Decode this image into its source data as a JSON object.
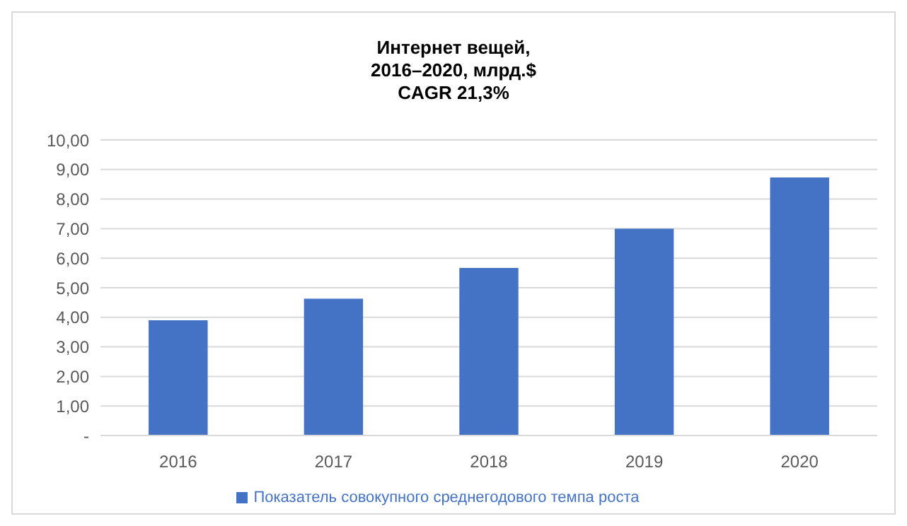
{
  "chart_data": {
    "type": "bar",
    "title": "Интернет вещей,\n2016–2020, млрд.$\nCAGR 21,3%",
    "categories": [
      "2016",
      "2017",
      "2018",
      "2019",
      "2020"
    ],
    "series": [
      {
        "name": "Показатель совокупного среднегодового темпа роста",
        "color": "#4472c4",
        "values": [
          3.9,
          4.63,
          5.67,
          7.0,
          8.73
        ]
      }
    ],
    "ylim": [
      0,
      10
    ],
    "yticks": [
      {
        "value": 0,
        "label": "-"
      },
      {
        "value": 1,
        "label": "1,00"
      },
      {
        "value": 2,
        "label": "2,00"
      },
      {
        "value": 3,
        "label": "3,00"
      },
      {
        "value": 4,
        "label": "4,00"
      },
      {
        "value": 5,
        "label": "5,00"
      },
      {
        "value": 6,
        "label": "6,00"
      },
      {
        "value": 7,
        "label": "7,00"
      },
      {
        "value": 8,
        "label": "8,00"
      },
      {
        "value": 9,
        "label": "9,00"
      },
      {
        "value": 10,
        "label": "10,00"
      }
    ],
    "grid": "y",
    "legend": "bottom"
  }
}
